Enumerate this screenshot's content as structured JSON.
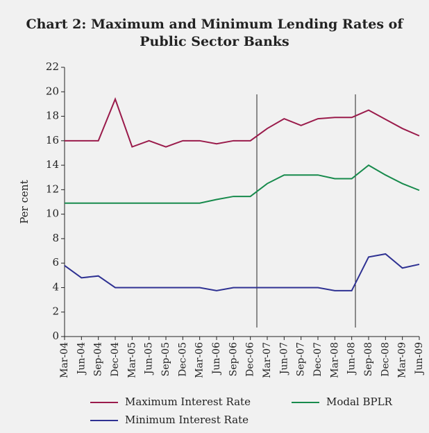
{
  "chart_data": {
    "type": "line",
    "title": "Chart 2: Maximum and Minimum Lending Rates of Public Sector Banks",
    "title_lines": [
      "Chart 2: Maximum and Minimum Lending Rates of",
      "Public Sector Banks"
    ],
    "y_label": "Per cent",
    "categories": [
      "Mar-04",
      "Jun-04",
      "Sep-04",
      "Dec-04",
      "Mar-05",
      "Jun-05",
      "Sep-05",
      "Dec-05",
      "Mar-06",
      "Jun-06",
      "Sep-06",
      "Dec-06",
      "Mar-07",
      "Jun-07",
      "Sep-07",
      "Dec-07",
      "Mar-08",
      "Jun-08",
      "Sep-08",
      "Dec-08",
      "Mar-09",
      "Jun-09"
    ],
    "series": [
      {
        "name": "Maximum Interest Rate",
        "color": "#9a1b4b",
        "values": [
          16,
          16,
          16,
          19.4,
          15.5,
          16,
          15.5,
          16,
          16,
          15.75,
          16,
          16,
          17,
          17.8,
          17.25,
          17.8,
          17.9,
          17.9,
          18.5,
          17.75,
          17,
          16.4
        ]
      },
      {
        "name": "Modal BPLR",
        "color": "#178a4c",
        "values": [
          10.9,
          10.9,
          10.9,
          10.9,
          10.9,
          10.9,
          10.9,
          10.9,
          10.9,
          11.2,
          11.45,
          11.45,
          12.5,
          13.2,
          13.2,
          13.2,
          12.9,
          12.9,
          14,
          13.2,
          12.5,
          11.95
        ]
      },
      {
        "name": "Minimum Interest Rate",
        "color": "#2e3192",
        "values": [
          5.8,
          4.8,
          4.95,
          4,
          4,
          4,
          4,
          4,
          4,
          3.75,
          4,
          4,
          4,
          4,
          4,
          4,
          3.75,
          3.75,
          6.5,
          6.75,
          5.6,
          5.9
        ]
      }
    ],
    "ylim": [
      0,
      22
    ],
    "yticks": [
      0,
      2,
      4,
      6,
      8,
      10,
      12,
      14,
      16,
      18,
      20,
      22
    ]
  }
}
